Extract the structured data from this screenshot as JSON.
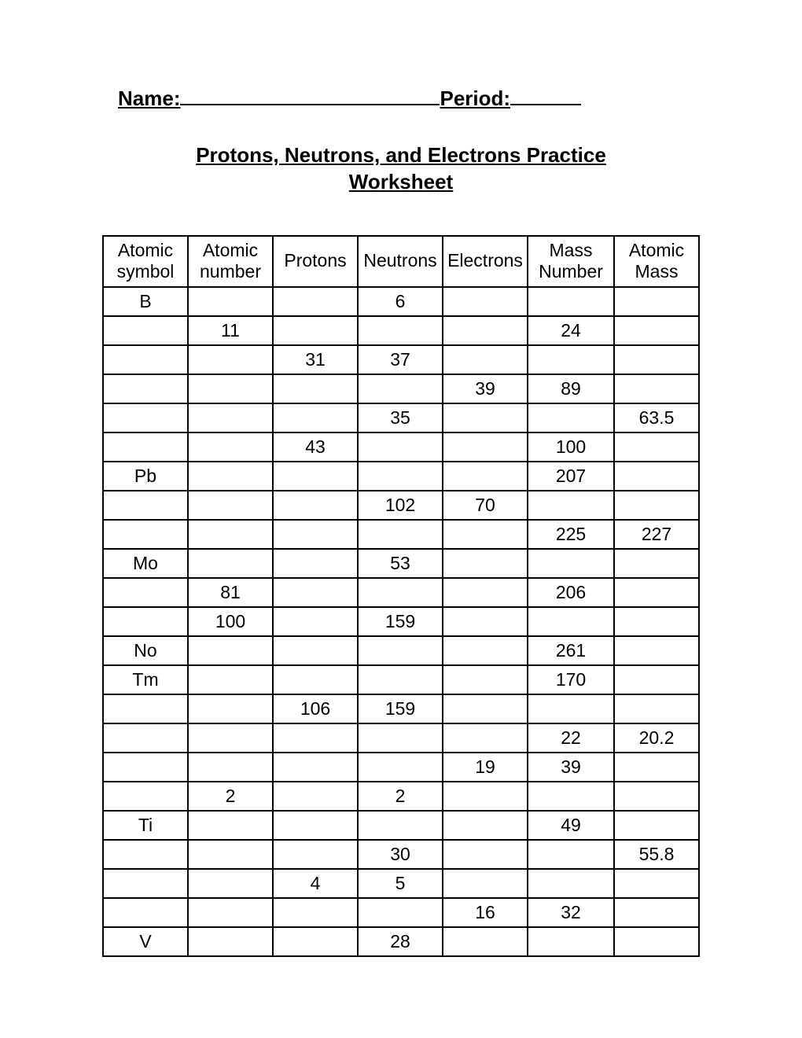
{
  "header": {
    "name_label": "Name:",
    "period_label": "Period:"
  },
  "title": "Protons, Neutrons, and Electrons Practice Worksheet",
  "table": {
    "columns": [
      "Atomic symbol",
      "Atomic number",
      "Protons",
      "Neutrons",
      "Electrons",
      "Mass Number",
      "Atomic Mass"
    ],
    "rows": [
      [
        "B",
        "",
        "",
        "6",
        "",
        "",
        ""
      ],
      [
        "",
        "11",
        "",
        "",
        "",
        "24",
        ""
      ],
      [
        "",
        "",
        "31",
        "37",
        "",
        "",
        ""
      ],
      [
        "",
        "",
        "",
        "",
        "39",
        "89",
        ""
      ],
      [
        "",
        "",
        "",
        "35",
        "",
        "",
        "63.5"
      ],
      [
        "",
        "",
        "43",
        "",
        "",
        "100",
        ""
      ],
      [
        "Pb",
        "",
        "",
        "",
        "",
        "207",
        ""
      ],
      [
        "",
        "",
        "",
        "102",
        "70",
        "",
        ""
      ],
      [
        "",
        "",
        "",
        "",
        "",
        "225",
        "227"
      ],
      [
        "Mo",
        "",
        "",
        "53",
        "",
        "",
        ""
      ],
      [
        "",
        "81",
        "",
        "",
        "",
        "206",
        ""
      ],
      [
        "",
        "100",
        "",
        "159",
        "",
        "",
        ""
      ],
      [
        "No",
        "",
        "",
        "",
        "",
        "261",
        ""
      ],
      [
        "Tm",
        "",
        "",
        "",
        "",
        "170",
        ""
      ],
      [
        "",
        "",
        "106",
        "159",
        "",
        "",
        ""
      ],
      [
        "",
        "",
        "",
        "",
        "",
        "22",
        "20.2"
      ],
      [
        "",
        "",
        "",
        "",
        "19",
        "39",
        ""
      ],
      [
        "",
        "2",
        "",
        "2",
        "",
        "",
        ""
      ],
      [
        "Ti",
        "",
        "",
        "",
        "",
        "49",
        ""
      ],
      [
        "",
        "",
        "",
        "30",
        "",
        "",
        "55.8"
      ],
      [
        "",
        "",
        "4",
        "5",
        "",
        "",
        ""
      ],
      [
        "",
        "",
        "",
        "",
        "16",
        "32",
        ""
      ],
      [
        "V",
        "",
        "",
        "28",
        "",
        "",
        ""
      ]
    ]
  }
}
